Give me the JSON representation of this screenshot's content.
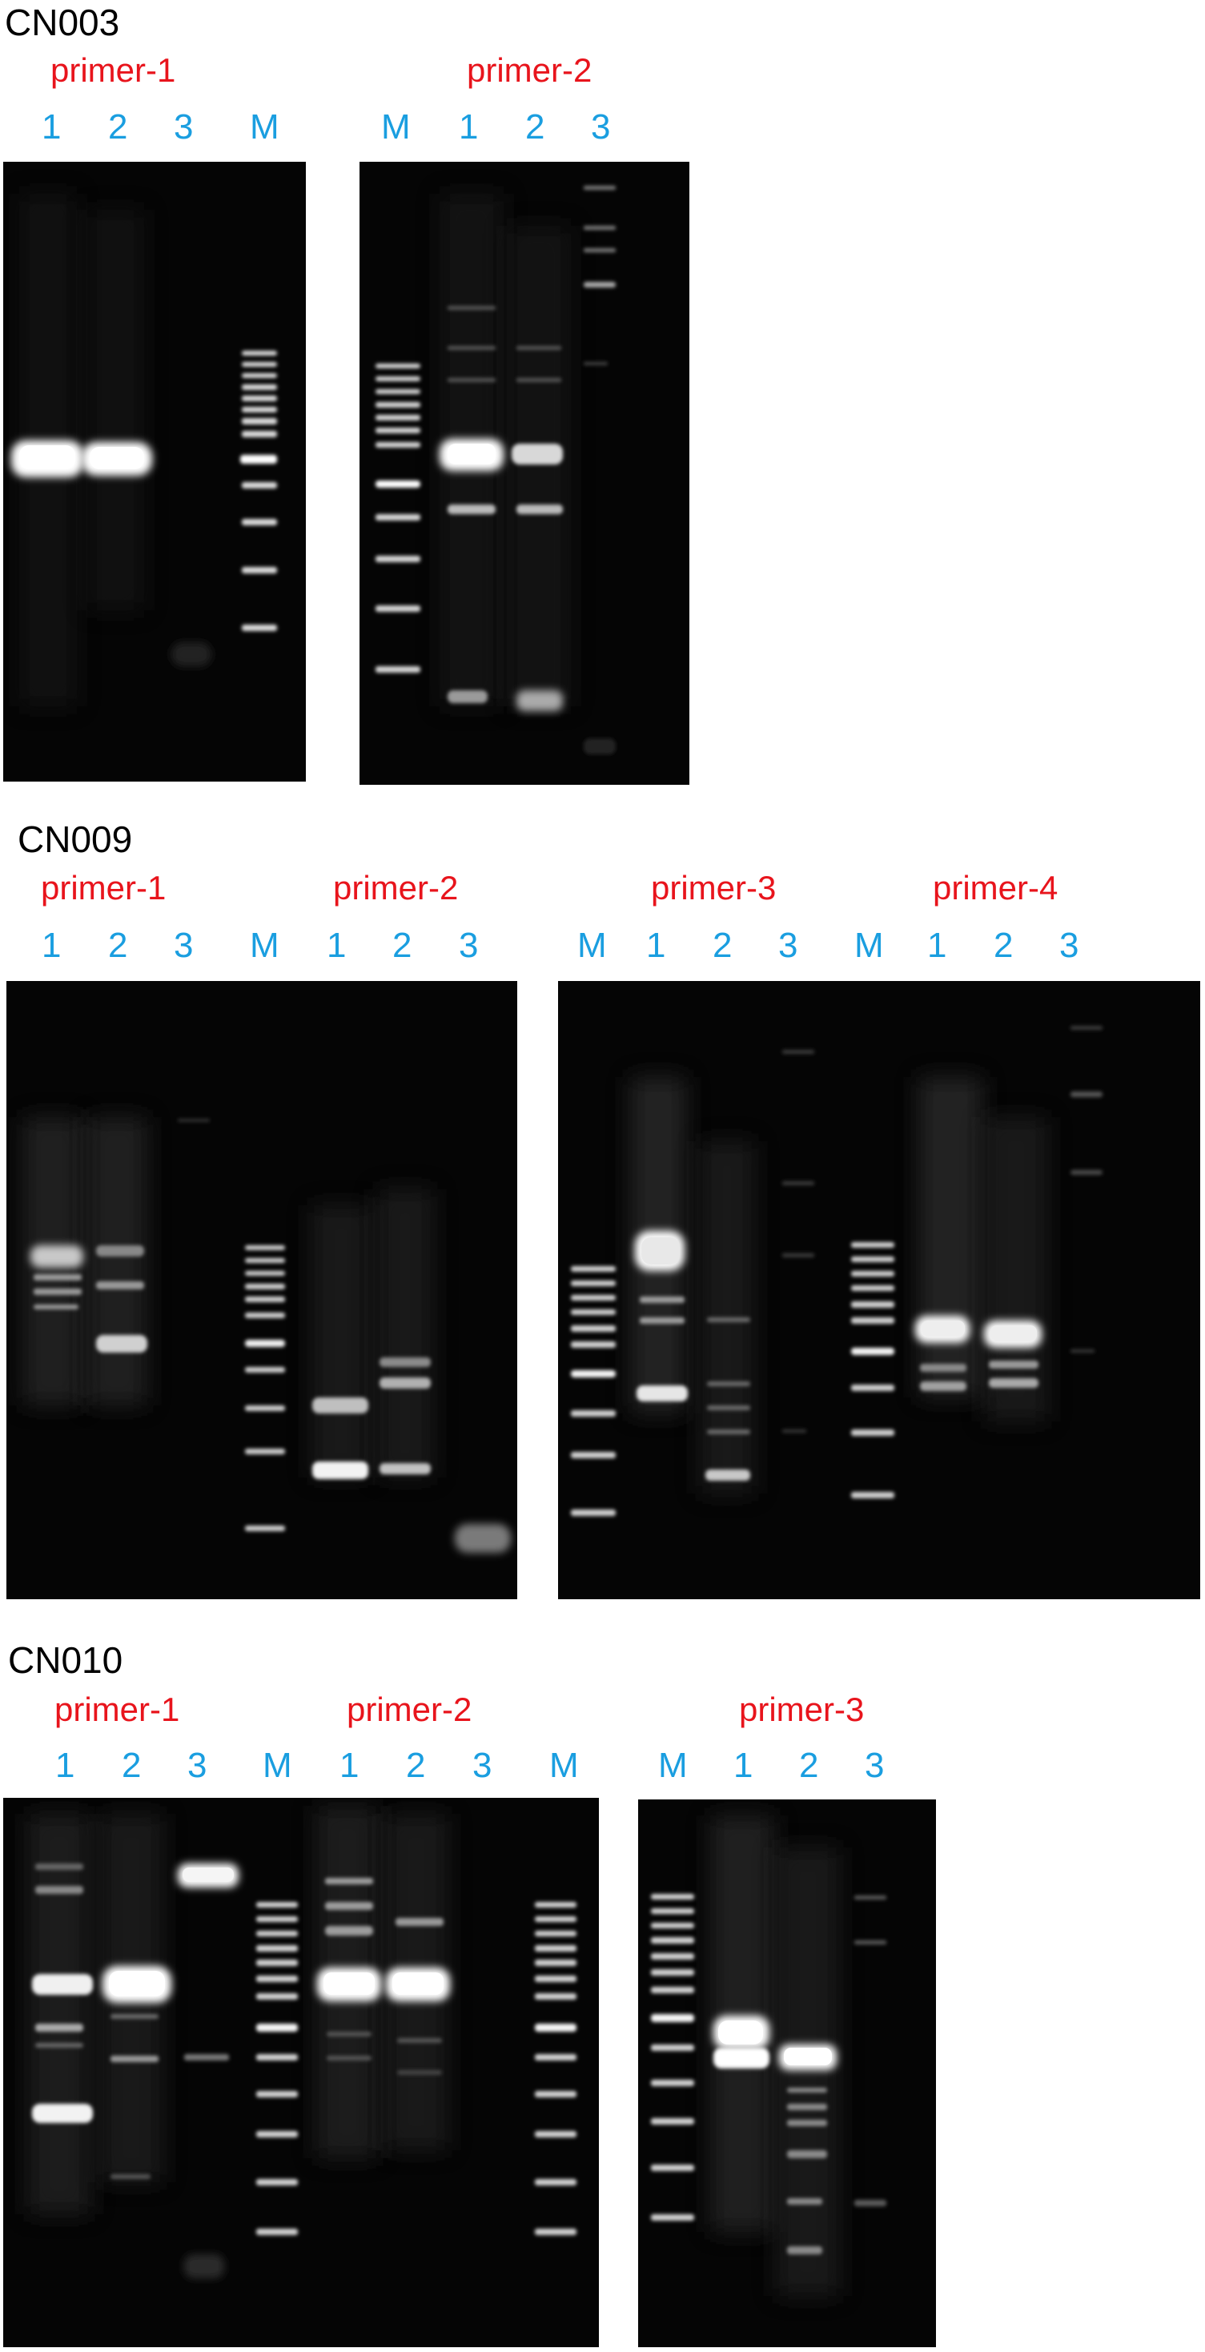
{
  "colors": {
    "section": "#000000",
    "primer": "#e8141c",
    "lane": "#1a9ee0",
    "gel": "#050505",
    "band": "#ffffff"
  },
  "cn003": {
    "title": "CN003",
    "primers": [
      "primer-1",
      "primer-2"
    ],
    "lanes_left": [
      "1",
      "2",
      "3",
      "M"
    ],
    "lanes_right": [
      "M",
      "1",
      "2",
      "3"
    ]
  },
  "cn009": {
    "title": "CN009",
    "primers": [
      "primer-1",
      "primer-2",
      "primer-3",
      "primer-4"
    ],
    "lanes_left": [
      "1",
      "2",
      "3",
      "M",
      "1",
      "2",
      "3"
    ],
    "lanes_right": [
      "M",
      "1",
      "2",
      "3",
      "M",
      "1",
      "2",
      "3"
    ]
  },
  "cn010": {
    "title": "CN010",
    "primers": [
      "primer-1",
      "primer-2",
      "primer-3"
    ],
    "lanes_left": [
      "1",
      "2",
      "3",
      "M",
      "1",
      "2",
      "3",
      "M"
    ],
    "lanes_right": [
      "M",
      "1",
      "2",
      "3"
    ]
  }
}
